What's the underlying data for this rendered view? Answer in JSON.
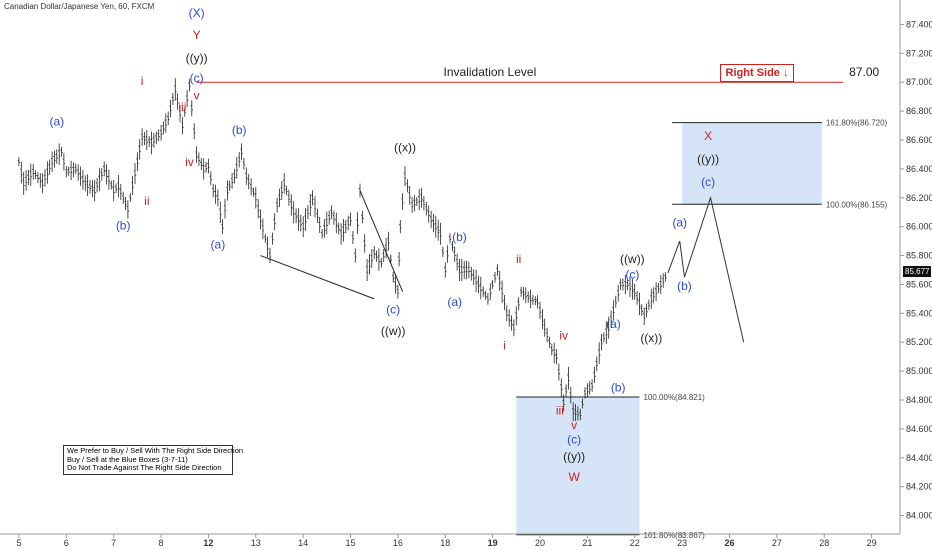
{
  "symbol": "Canadian Dollar/Japanese Yen, 60, FXCM",
  "right_side_label": "Right Side ↓",
  "invalidation": {
    "label": "Invalidation Level",
    "value_label": "87.00",
    "price": 87.0
  },
  "notes": [
    "We Prefer to Buy / Sell With The Right Side Direction",
    "Buy / Sell at the Blue Boxes (3-7-11)",
    "Do Not Trade Against The Right Side Direction"
  ],
  "last_price_label": "85.677",
  "chart_data": {
    "type": "line",
    "title": "",
    "xlabel": "",
    "ylabel": "",
    "ylim": [
      83.9,
      87.5
    ],
    "y_ticks": [
      84.0,
      84.2,
      84.4,
      84.6,
      84.8,
      85.0,
      85.2,
      85.4,
      85.6,
      85.8,
      86.0,
      86.2,
      86.4,
      86.6,
      86.8,
      87.0,
      87.2,
      87.4
    ],
    "y_tick_labels": [
      "84.000",
      "84.200",
      "84.400",
      "84.600",
      "84.800",
      "85.000",
      "85.200",
      "85.400",
      "85.600",
      "85.800",
      "86.000",
      "86.200",
      "86.400",
      "86.600",
      "86.800",
      "87.000",
      "87.200",
      "87.400"
    ],
    "x_ticks": [
      {
        "label": "5",
        "i": 0
      },
      {
        "label": "6",
        "i": 1
      },
      {
        "label": "7",
        "i": 2
      },
      {
        "label": "8",
        "i": 3
      },
      {
        "label": "12",
        "i": 4
      },
      {
        "label": "13",
        "i": 5
      },
      {
        "label": "14",
        "i": 6
      },
      {
        "label": "15",
        "i": 7
      },
      {
        "label": "16",
        "i": 8
      },
      {
        "label": "18",
        "i": 9
      },
      {
        "label": "19",
        "i": 10
      },
      {
        "label": "20",
        "i": 11
      },
      {
        "label": "21",
        "i": 12
      },
      {
        "label": "22",
        "i": 13
      },
      {
        "label": "23",
        "i": 14
      },
      {
        "label": "26",
        "i": 15
      },
      {
        "label": "27",
        "i": 16
      },
      {
        "label": "28",
        "i": 17
      },
      {
        "label": "29",
        "i": 18
      }
    ],
    "x_range": [
      -0.4,
      18.6
    ],
    "series": [
      {
        "values": [
          [
            0.0,
            86.45
          ],
          [
            0.1,
            86.3
          ],
          [
            0.3,
            86.38
          ],
          [
            0.5,
            86.3
          ],
          [
            0.7,
            86.45
          ],
          [
            0.9,
            86.52
          ],
          [
            1.0,
            86.38
          ],
          [
            1.2,
            86.4
          ],
          [
            1.4,
            86.3
          ],
          [
            1.6,
            86.25
          ],
          [
            1.8,
            86.4
          ],
          [
            2.0,
            86.25
          ],
          [
            2.1,
            86.28
          ],
          [
            2.3,
            86.12
          ],
          [
            2.5,
            86.45
          ],
          [
            2.6,
            86.62
          ],
          [
            2.8,
            86.58
          ],
          [
            3.0,
            86.65
          ],
          [
            3.15,
            86.75
          ],
          [
            3.3,
            86.95
          ],
          [
            3.45,
            86.7
          ],
          [
            3.6,
            86.98
          ],
          [
            3.75,
            86.5
          ],
          [
            3.9,
            86.4
          ],
          [
            4.0,
            86.42
          ],
          [
            4.1,
            86.25
          ],
          [
            4.2,
            86.2
          ],
          [
            4.3,
            86.0
          ],
          [
            4.4,
            86.25
          ],
          [
            4.55,
            86.35
          ],
          [
            4.7,
            86.52
          ],
          [
            4.8,
            86.35
          ],
          [
            5.0,
            86.2
          ],
          [
            5.1,
            86.05
          ],
          [
            5.2,
            85.92
          ],
          [
            5.3,
            85.8
          ],
          [
            5.45,
            86.15
          ],
          [
            5.6,
            86.3
          ],
          [
            5.8,
            86.1
          ],
          [
            6.0,
            86.0
          ],
          [
            6.2,
            86.2
          ],
          [
            6.4,
            85.95
          ],
          [
            6.6,
            86.1
          ],
          [
            6.8,
            85.95
          ],
          [
            7.0,
            86.05
          ],
          [
            7.1,
            85.8
          ],
          [
            7.2,
            86.25
          ],
          [
            7.35,
            85.7
          ],
          [
            7.5,
            85.82
          ],
          [
            7.65,
            85.75
          ],
          [
            7.8,
            85.9
          ],
          [
            7.9,
            85.65
          ],
          [
            8.0,
            85.55
          ],
          [
            8.05,
            86.0
          ],
          [
            8.15,
            86.35
          ],
          [
            8.3,
            86.15
          ],
          [
            8.5,
            86.2
          ],
          [
            8.7,
            86.05
          ],
          [
            8.9,
            85.95
          ],
          [
            9.0,
            85.7
          ],
          [
            9.1,
            85.92
          ],
          [
            9.3,
            85.7
          ],
          [
            9.5,
            85.7
          ],
          [
            9.7,
            85.6
          ],
          [
            9.9,
            85.5
          ],
          [
            10.1,
            85.7
          ],
          [
            10.3,
            85.4
          ],
          [
            10.45,
            85.3
          ],
          [
            10.6,
            85.55
          ],
          [
            10.8,
            85.5
          ],
          [
            10.95,
            85.48
          ],
          [
            11.1,
            85.3
          ],
          [
            11.25,
            85.15
          ],
          [
            11.35,
            85.1
          ],
          [
            11.5,
            84.78
          ],
          [
            11.6,
            84.95
          ],
          [
            11.7,
            84.72
          ],
          [
            11.85,
            84.7
          ],
          [
            11.95,
            84.85
          ],
          [
            12.1,
            84.9
          ],
          [
            12.2,
            85.05
          ],
          [
            12.3,
            85.2
          ],
          [
            12.45,
            85.3
          ],
          [
            12.55,
            85.42
          ],
          [
            12.7,
            85.6
          ],
          [
            12.85,
            85.6
          ],
          [
            13.0,
            85.55
          ],
          [
            13.2,
            85.38
          ],
          [
            13.35,
            85.5
          ],
          [
            13.55,
            85.6
          ],
          [
            13.7,
            85.68
          ]
        ]
      }
    ],
    "projection": [
      [
        13.7,
        85.68
      ],
      [
        13.95,
        85.9
      ],
      [
        14.05,
        85.65
      ],
      [
        14.6,
        86.2
      ],
      [
        15.3,
        85.2
      ]
    ],
    "invalidation_line": {
      "from_i": 3.75,
      "to_i": 17.4,
      "y": 87.0
    },
    "upper_box": {
      "label_top": "161.80%(86.720)",
      "label_bottom": "100.00%(86.155)",
      "top": 86.72,
      "bottom": 86.155,
      "from_i": 14.0,
      "to_i": 16.95
    },
    "lower_box": {
      "label_top": "100.00%(84.821)",
      "label_bottom": "161.80%(83.867)",
      "top": 84.821,
      "bottom": 83.867,
      "from_i": 10.5,
      "to_i": 13.1
    },
    "annotations": [
      {
        "text": "(X)",
        "i": 3.75,
        "y": 87.45,
        "color": "blue"
      },
      {
        "text": "Y",
        "i": 3.75,
        "y": 87.3,
        "color": "red"
      },
      {
        "text": "((y))",
        "i": 3.75,
        "y": 87.14,
        "color": "black"
      },
      {
        "text": "(c)",
        "i": 3.75,
        "y": 87.0,
        "color": "blue"
      },
      {
        "text": "v",
        "i": 3.75,
        "y": 86.88,
        "color": "red"
      },
      {
        "text": "iii",
        "i": 3.45,
        "y": 86.8,
        "color": "red"
      },
      {
        "text": "iv",
        "i": 3.6,
        "y": 86.42,
        "color": "red"
      },
      {
        "text": "i",
        "i": 2.6,
        "y": 86.98,
        "color": "red"
      },
      {
        "text": "ii",
        "i": 2.7,
        "y": 86.15,
        "color": "red"
      },
      {
        "text": "(a)",
        "i": 0.8,
        "y": 86.7,
        "color": "blue"
      },
      {
        "text": "(b)",
        "i": 2.2,
        "y": 85.98,
        "color": "blue"
      },
      {
        "text": "(b)",
        "i": 4.65,
        "y": 86.64,
        "color": "blue"
      },
      {
        "text": "(a)",
        "i": 4.2,
        "y": 85.85,
        "color": "blue"
      },
      {
        "text": "((x))",
        "i": 8.15,
        "y": 86.52,
        "color": "black"
      },
      {
        "text": "(c)",
        "i": 7.9,
        "y": 85.4,
        "color": "blue"
      },
      {
        "text": "((w))",
        "i": 7.9,
        "y": 85.25,
        "color": "black"
      },
      {
        "text": "(b)",
        "i": 9.3,
        "y": 85.9,
        "color": "blue"
      },
      {
        "text": "(a)",
        "i": 9.2,
        "y": 85.45,
        "color": "blue"
      },
      {
        "text": "ii",
        "i": 10.55,
        "y": 85.75,
        "color": "red"
      },
      {
        "text": "i",
        "i": 10.25,
        "y": 85.15,
        "color": "red"
      },
      {
        "text": "iv",
        "i": 11.5,
        "y": 85.22,
        "color": "red"
      },
      {
        "text": "iii",
        "i": 11.42,
        "y": 84.7,
        "color": "red"
      },
      {
        "text": "v",
        "i": 11.72,
        "y": 84.6,
        "color": "red"
      },
      {
        "text": "(c)",
        "i": 11.72,
        "y": 84.5,
        "color": "blue"
      },
      {
        "text": "((y))",
        "i": 11.72,
        "y": 84.38,
        "color": "black"
      },
      {
        "text": "W",
        "i": 11.72,
        "y": 84.24,
        "color": "red"
      },
      {
        "text": "(a)",
        "i": 12.55,
        "y": 85.3,
        "color": "blue"
      },
      {
        "text": "(b)",
        "i": 12.65,
        "y": 84.86,
        "color": "blue"
      },
      {
        "text": "(c)",
        "i": 12.95,
        "y": 85.64,
        "color": "blue"
      },
      {
        "text": "((w))",
        "i": 12.95,
        "y": 85.75,
        "color": "black"
      },
      {
        "text": "((x))",
        "i": 13.35,
        "y": 85.2,
        "color": "black"
      },
      {
        "text": "(a)",
        "i": 13.95,
        "y": 86.0,
        "color": "blue"
      },
      {
        "text": "(b)",
        "i": 14.05,
        "y": 85.56,
        "color": "blue"
      },
      {
        "text": "X",
        "i": 14.55,
        "y": 86.6,
        "color": "red"
      },
      {
        "text": "((y))",
        "i": 14.55,
        "y": 86.44,
        "color": "black"
      },
      {
        "text": "(c)",
        "i": 14.55,
        "y": 86.28,
        "color": "blue"
      }
    ],
    "triangle": [
      [
        5.1,
        85.8
      ],
      [
        7.5,
        85.5
      ],
      [
        8.1,
        85.55
      ],
      [
        7.2,
        86.25
      ],
      [
        7.5,
        85.85
      ]
    ]
  }
}
